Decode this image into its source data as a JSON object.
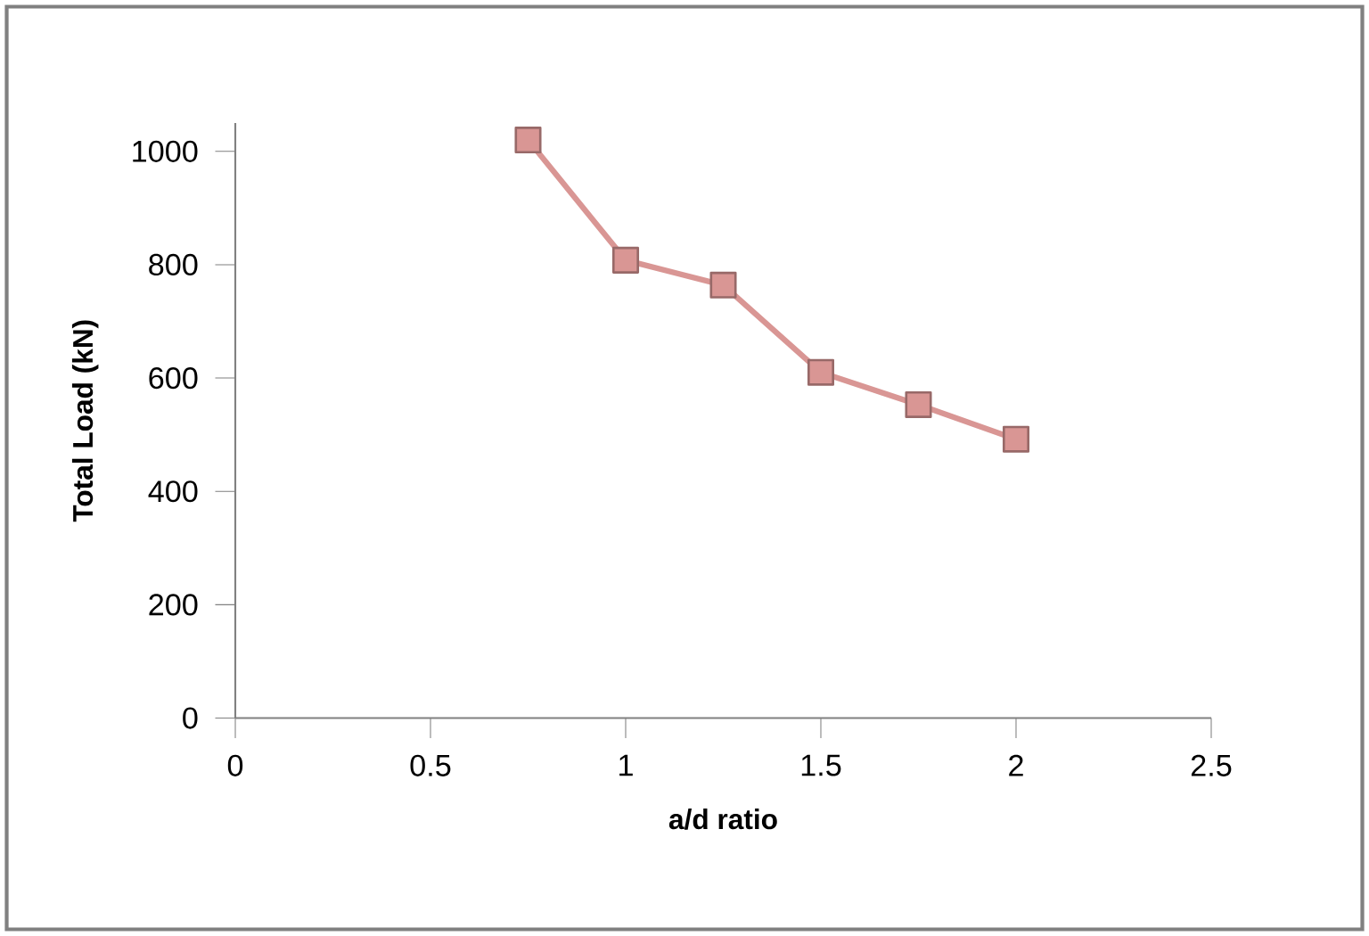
{
  "chart_data": {
    "type": "line",
    "xlabel": "a/d ratio",
    "ylabel": "Total Load (kN)",
    "x": [
      0.75,
      1,
      1.25,
      1.5,
      1.75,
      2
    ],
    "series": [
      {
        "color": "#d99694",
        "values": [
          1020,
          808,
          764,
          610,
          553,
          492
        ]
      }
    ],
    "xlim": [
      0,
      2.5
    ],
    "ylim": [
      0,
      1050
    ],
    "xticks": [
      0,
      0.5,
      1,
      1.5,
      2,
      2.5
    ],
    "yticks": [
      0,
      200,
      400,
      600,
      800,
      1000
    ],
    "marker": "square",
    "grid": false
  }
}
